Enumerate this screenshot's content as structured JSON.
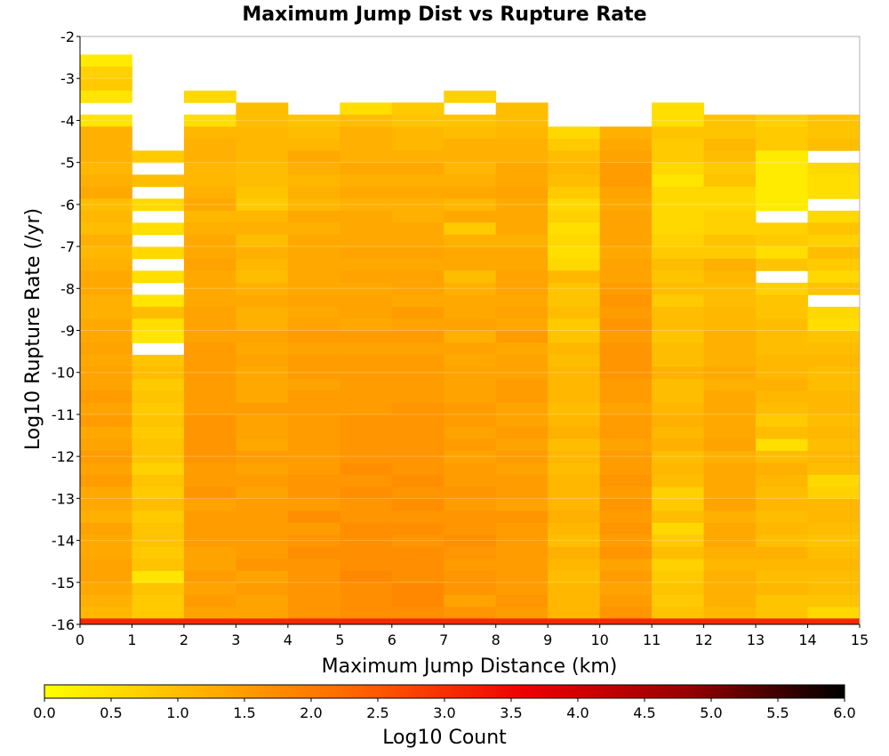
{
  "chart_data": {
    "type": "heatmap",
    "title": "Maximum Jump Dist vs Rupture Rate",
    "xlabel": "Maximum Jump Distance (km)",
    "ylabel": "Log10 Rupture Rate (/yr)",
    "xlim": [
      0,
      15
    ],
    "ylim": [
      -16,
      -2
    ],
    "xticks": [
      "0",
      "1",
      "2",
      "3",
      "4",
      "5",
      "6",
      "7",
      "8",
      "9",
      "10",
      "11",
      "12",
      "13",
      "14",
      "15"
    ],
    "yticks": [
      "-2",
      "-3",
      "-4",
      "-5",
      "-6",
      "-7",
      "-8",
      "-9",
      "-10",
      "-11",
      "-12",
      "-13",
      "-14",
      "-15",
      "-16"
    ],
    "x_bins": [
      "0-1",
      "1-2",
      "2-3",
      "3-4",
      "4-5",
      "5-6",
      "6-7",
      "7-8",
      "8-9",
      "9-10",
      "10-11",
      "11-12",
      "12-13",
      "13-14",
      "14-15"
    ],
    "y_bin_width": 0.286,
    "top_row_ylog": -2.43,
    "bottom_row_value": 3.1,
    "colorbar": {
      "label": "Log10 Count",
      "min": 0.0,
      "max": 6.0,
      "ticks": [
        "0.0",
        "0.5",
        "1.0",
        "1.5",
        "2.0",
        "2.5",
        "3.0",
        "3.5",
        "4.0",
        "4.5",
        "5.0",
        "5.5",
        "6.0"
      ],
      "stops": [
        "#ffff00",
        "#ffb000",
        "#ff6000",
        "#ee0000",
        "#990000",
        "#000000"
      ]
    },
    "columns": [
      [
        0.3,
        0.7,
        0.8,
        0.4,
        null,
        0.4,
        1.2,
        1.2,
        1.2,
        1.1,
        1.2,
        1.3,
        1.0,
        1.1,
        1.0,
        1.2,
        1.1,
        1.2,
        1.3,
        1.3,
        1.2,
        1.2,
        1.3,
        1.3,
        1.4,
        1.3,
        1.4,
        1.4,
        1.5,
        1.4,
        1.5,
        1.3,
        1.4,
        1.5,
        1.4,
        1.5,
        1.3,
        1.3,
        1.2,
        1.4,
        1.3,
        1.3,
        1.4,
        1.4,
        1.3,
        1.2,
        1.1,
        1.3
      ],
      [
        null,
        null,
        null,
        null,
        null,
        null,
        null,
        null,
        0.8,
        null,
        1.0,
        null,
        0.6,
        null,
        0.5,
        null,
        0.6,
        null,
        0.5,
        null,
        0.4,
        1.0,
        0.5,
        0.4,
        null,
        0.9,
        1.0,
        0.8,
        0.9,
        0.8,
        0.9,
        0.8,
        0.9,
        0.9,
        0.7,
        0.9,
        0.8,
        1.0,
        0.8,
        0.9,
        0.9,
        0.8,
        0.9,
        0.4,
        0.9,
        0.8,
        0.8,
        0.8
      ],
      [
        null,
        null,
        null,
        0.6,
        null,
        0.5,
        1.1,
        1.2,
        1.2,
        1.1,
        1.1,
        1.2,
        1.3,
        1.1,
        1.2,
        1.3,
        1.3,
        1.4,
        1.3,
        1.3,
        1.3,
        1.4,
        1.4,
        1.4,
        1.5,
        1.5,
        1.5,
        1.5,
        1.5,
        1.5,
        1.6,
        1.6,
        1.6,
        1.6,
        1.5,
        1.5,
        1.6,
        1.4,
        1.5,
        1.5,
        1.5,
        1.4,
        1.4,
        1.5,
        1.4,
        1.5,
        1.4,
        1.4
      ],
      [
        null,
        null,
        null,
        null,
        1.0,
        1.0,
        1.1,
        1.1,
        1.1,
        1.0,
        1.0,
        0.9,
        0.8,
        1.1,
        1.2,
        1.0,
        1.2,
        1.1,
        1.0,
        1.2,
        1.3,
        1.2,
        1.2,
        1.4,
        1.3,
        1.4,
        1.3,
        1.3,
        1.3,
        1.5,
        1.4,
        1.4,
        1.3,
        1.5,
        1.4,
        1.5,
        1.4,
        1.5,
        1.5,
        1.5,
        1.5,
        1.5,
        1.6,
        1.4,
        1.5,
        1.4,
        1.4,
        1.4
      ],
      [
        null,
        null,
        null,
        null,
        null,
        0.9,
        1.0,
        1.1,
        1.3,
        1.2,
        1.1,
        1.2,
        1.1,
        1.3,
        1.2,
        1.3,
        1.3,
        1.3,
        1.3,
        1.3,
        1.4,
        1.3,
        1.4,
        1.5,
        1.4,
        1.5,
        1.5,
        1.4,
        1.5,
        1.5,
        1.5,
        1.5,
        1.5,
        1.5,
        1.5,
        1.6,
        1.6,
        1.5,
        1.7,
        1.5,
        1.6,
        1.7,
        1.6,
        1.6,
        1.6,
        1.6,
        1.6,
        1.5
      ],
      [
        null,
        null,
        null,
        null,
        0.5,
        1.0,
        1.2,
        1.2,
        1.2,
        1.3,
        1.2,
        1.3,
        1.2,
        1.3,
        1.3,
        1.3,
        1.4,
        1.3,
        1.4,
        1.3,
        1.4,
        1.4,
        1.3,
        1.5,
        1.4,
        1.5,
        1.5,
        1.5,
        1.5,
        1.5,
        1.6,
        1.6,
        1.6,
        1.6,
        1.7,
        1.6,
        1.7,
        1.6,
        1.6,
        1.7,
        1.7,
        1.7,
        1.7,
        1.8,
        1.7,
        1.7,
        1.7,
        1.7
      ],
      [
        null,
        null,
        null,
        null,
        0.8,
        0.9,
        1.1,
        1.1,
        1.2,
        1.3,
        1.2,
        1.3,
        1.2,
        1.2,
        1.3,
        1.3,
        1.4,
        1.3,
        1.4,
        1.4,
        1.3,
        1.5,
        1.4,
        1.5,
        1.4,
        1.5,
        1.5,
        1.5,
        1.5,
        1.6,
        1.6,
        1.6,
        1.6,
        1.6,
        1.6,
        1.7,
        1.6,
        1.7,
        1.6,
        1.7,
        1.6,
        1.7,
        1.7,
        1.7,
        1.8,
        1.8,
        1.7,
        1.7
      ],
      [
        null,
        null,
        null,
        0.7,
        null,
        0.9,
        1.0,
        1.2,
        1.2,
        1.1,
        1.2,
        1.3,
        1.1,
        1.3,
        0.8,
        1.2,
        1.3,
        1.3,
        1.0,
        1.2,
        1.3,
        1.3,
        1.4,
        1.2,
        1.4,
        1.3,
        1.4,
        1.4,
        1.4,
        1.5,
        1.5,
        1.4,
        1.5,
        1.4,
        1.5,
        1.5,
        1.6,
        1.5,
        1.6,
        1.6,
        1.7,
        1.6,
        1.5,
        1.6,
        1.6,
        1.4,
        1.6,
        1.5
      ],
      [
        null,
        null,
        null,
        null,
        1.0,
        1.0,
        1.1,
        1.2,
        1.2,
        1.3,
        1.3,
        1.4,
        1.3,
        1.3,
        1.3,
        1.2,
        1.3,
        1.3,
        1.4,
        1.4,
        1.3,
        1.4,
        1.3,
        1.5,
        1.3,
        1.4,
        1.4,
        1.5,
        1.5,
        1.4,
        1.4,
        1.5,
        1.4,
        1.5,
        1.4,
        1.5,
        1.5,
        1.4,
        1.6,
        1.5,
        1.5,
        1.5,
        1.5,
        1.5,
        1.5,
        1.6,
        1.5,
        1.5
      ],
      [
        null,
        null,
        null,
        null,
        null,
        null,
        0.6,
        0.8,
        1.0,
        1.1,
        1.0,
        0.8,
        0.6,
        0.7,
        0.5,
        0.6,
        0.5,
        0.6,
        1.1,
        0.9,
        0.9,
        1.0,
        0.8,
        0.9,
        1.1,
        1.0,
        1.1,
        1.1,
        1.1,
        1.0,
        1.1,
        1.2,
        1.0,
        1.1,
        1.0,
        1.1,
        1.1,
        1.1,
        1.2,
        1.1,
        1.0,
        1.2,
        1.1,
        1.0,
        1.1,
        1.1,
        1.1,
        1.2
      ],
      [
        null,
        null,
        null,
        null,
        null,
        null,
        1.2,
        1.3,
        1.4,
        1.5,
        1.5,
        1.4,
        1.3,
        1.4,
        1.4,
        1.4,
        1.3,
        1.4,
        1.4,
        1.5,
        1.6,
        1.5,
        1.6,
        1.5,
        1.6,
        1.6,
        1.6,
        1.5,
        1.5,
        1.4,
        1.5,
        1.5,
        1.4,
        1.5,
        1.5,
        1.6,
        1.5,
        1.6,
        1.5,
        1.6,
        1.5,
        1.6,
        1.4,
        1.5,
        1.4,
        1.5,
        1.6,
        1.4
      ],
      [
        null,
        null,
        null,
        null,
        0.5,
        0.5,
        0.9,
        0.8,
        0.8,
        0.6,
        0.4,
        0.6,
        0.6,
        0.6,
        0.6,
        0.7,
        0.8,
        1.0,
        0.9,
        1.0,
        0.8,
        1.0,
        1.0,
        0.9,
        1.0,
        1.0,
        1.2,
        1.0,
        1.0,
        1.1,
        1.2,
        1.1,
        1.2,
        1.0,
        1.1,
        1.0,
        0.7,
        0.8,
        1.0,
        0.6,
        0.8,
        1.0,
        0.7,
        0.8,
        0.9,
        0.8,
        0.9,
        1.0
      ],
      [
        null,
        null,
        null,
        null,
        null,
        0.9,
        0.9,
        1.1,
        1.0,
        0.8,
        0.9,
        0.6,
        0.6,
        0.7,
        0.7,
        0.9,
        0.8,
        1.2,
        1.1,
        1.0,
        1.0,
        1.1,
        1.1,
        1.2,
        1.2,
        1.2,
        1.3,
        1.2,
        1.3,
        1.3,
        1.3,
        1.3,
        1.4,
        1.2,
        1.3,
        1.3,
        1.3,
        1.4,
        1.2,
        1.3,
        1.3,
        1.2,
        1.1,
        1.2,
        1.2,
        1.2,
        1.1,
        1.2
      ],
      [
        null,
        null,
        null,
        null,
        null,
        0.7,
        0.8,
        0.8,
        0.3,
        0.3,
        0.3,
        0.3,
        0.3,
        null,
        0.7,
        0.8,
        0.5,
        0.9,
        null,
        0.7,
        0.9,
        0.9,
        1.0,
        1.0,
        1.0,
        1.1,
        1.1,
        1.2,
        1.1,
        1.0,
        0.8,
        1.0,
        0.5,
        1.0,
        1.2,
        1.1,
        1.0,
        1.1,
        1.0,
        1.1,
        1.0,
        1.2,
        1.1,
        1.0,
        1.1,
        0.9,
        0.9,
        1.0
      ],
      [
        null,
        null,
        null,
        null,
        null,
        0.9,
        0.9,
        1.0,
        null,
        0.6,
        0.5,
        0.5,
        null,
        0.6,
        0.9,
        0.7,
        1.0,
        0.8,
        0.6,
        0.9,
        null,
        0.6,
        0.5,
        0.9,
        1.0,
        1.1,
        1.0,
        1.0,
        1.1,
        1.1,
        1.0,
        1.1,
        1.0,
        1.1,
        1.0,
        0.6,
        0.7,
        1.1,
        1.1,
        1.0,
        0.9,
        1.0,
        1.1,
        1.0,
        1.0,
        0.9,
        0.6,
        0.8
      ]
    ]
  }
}
